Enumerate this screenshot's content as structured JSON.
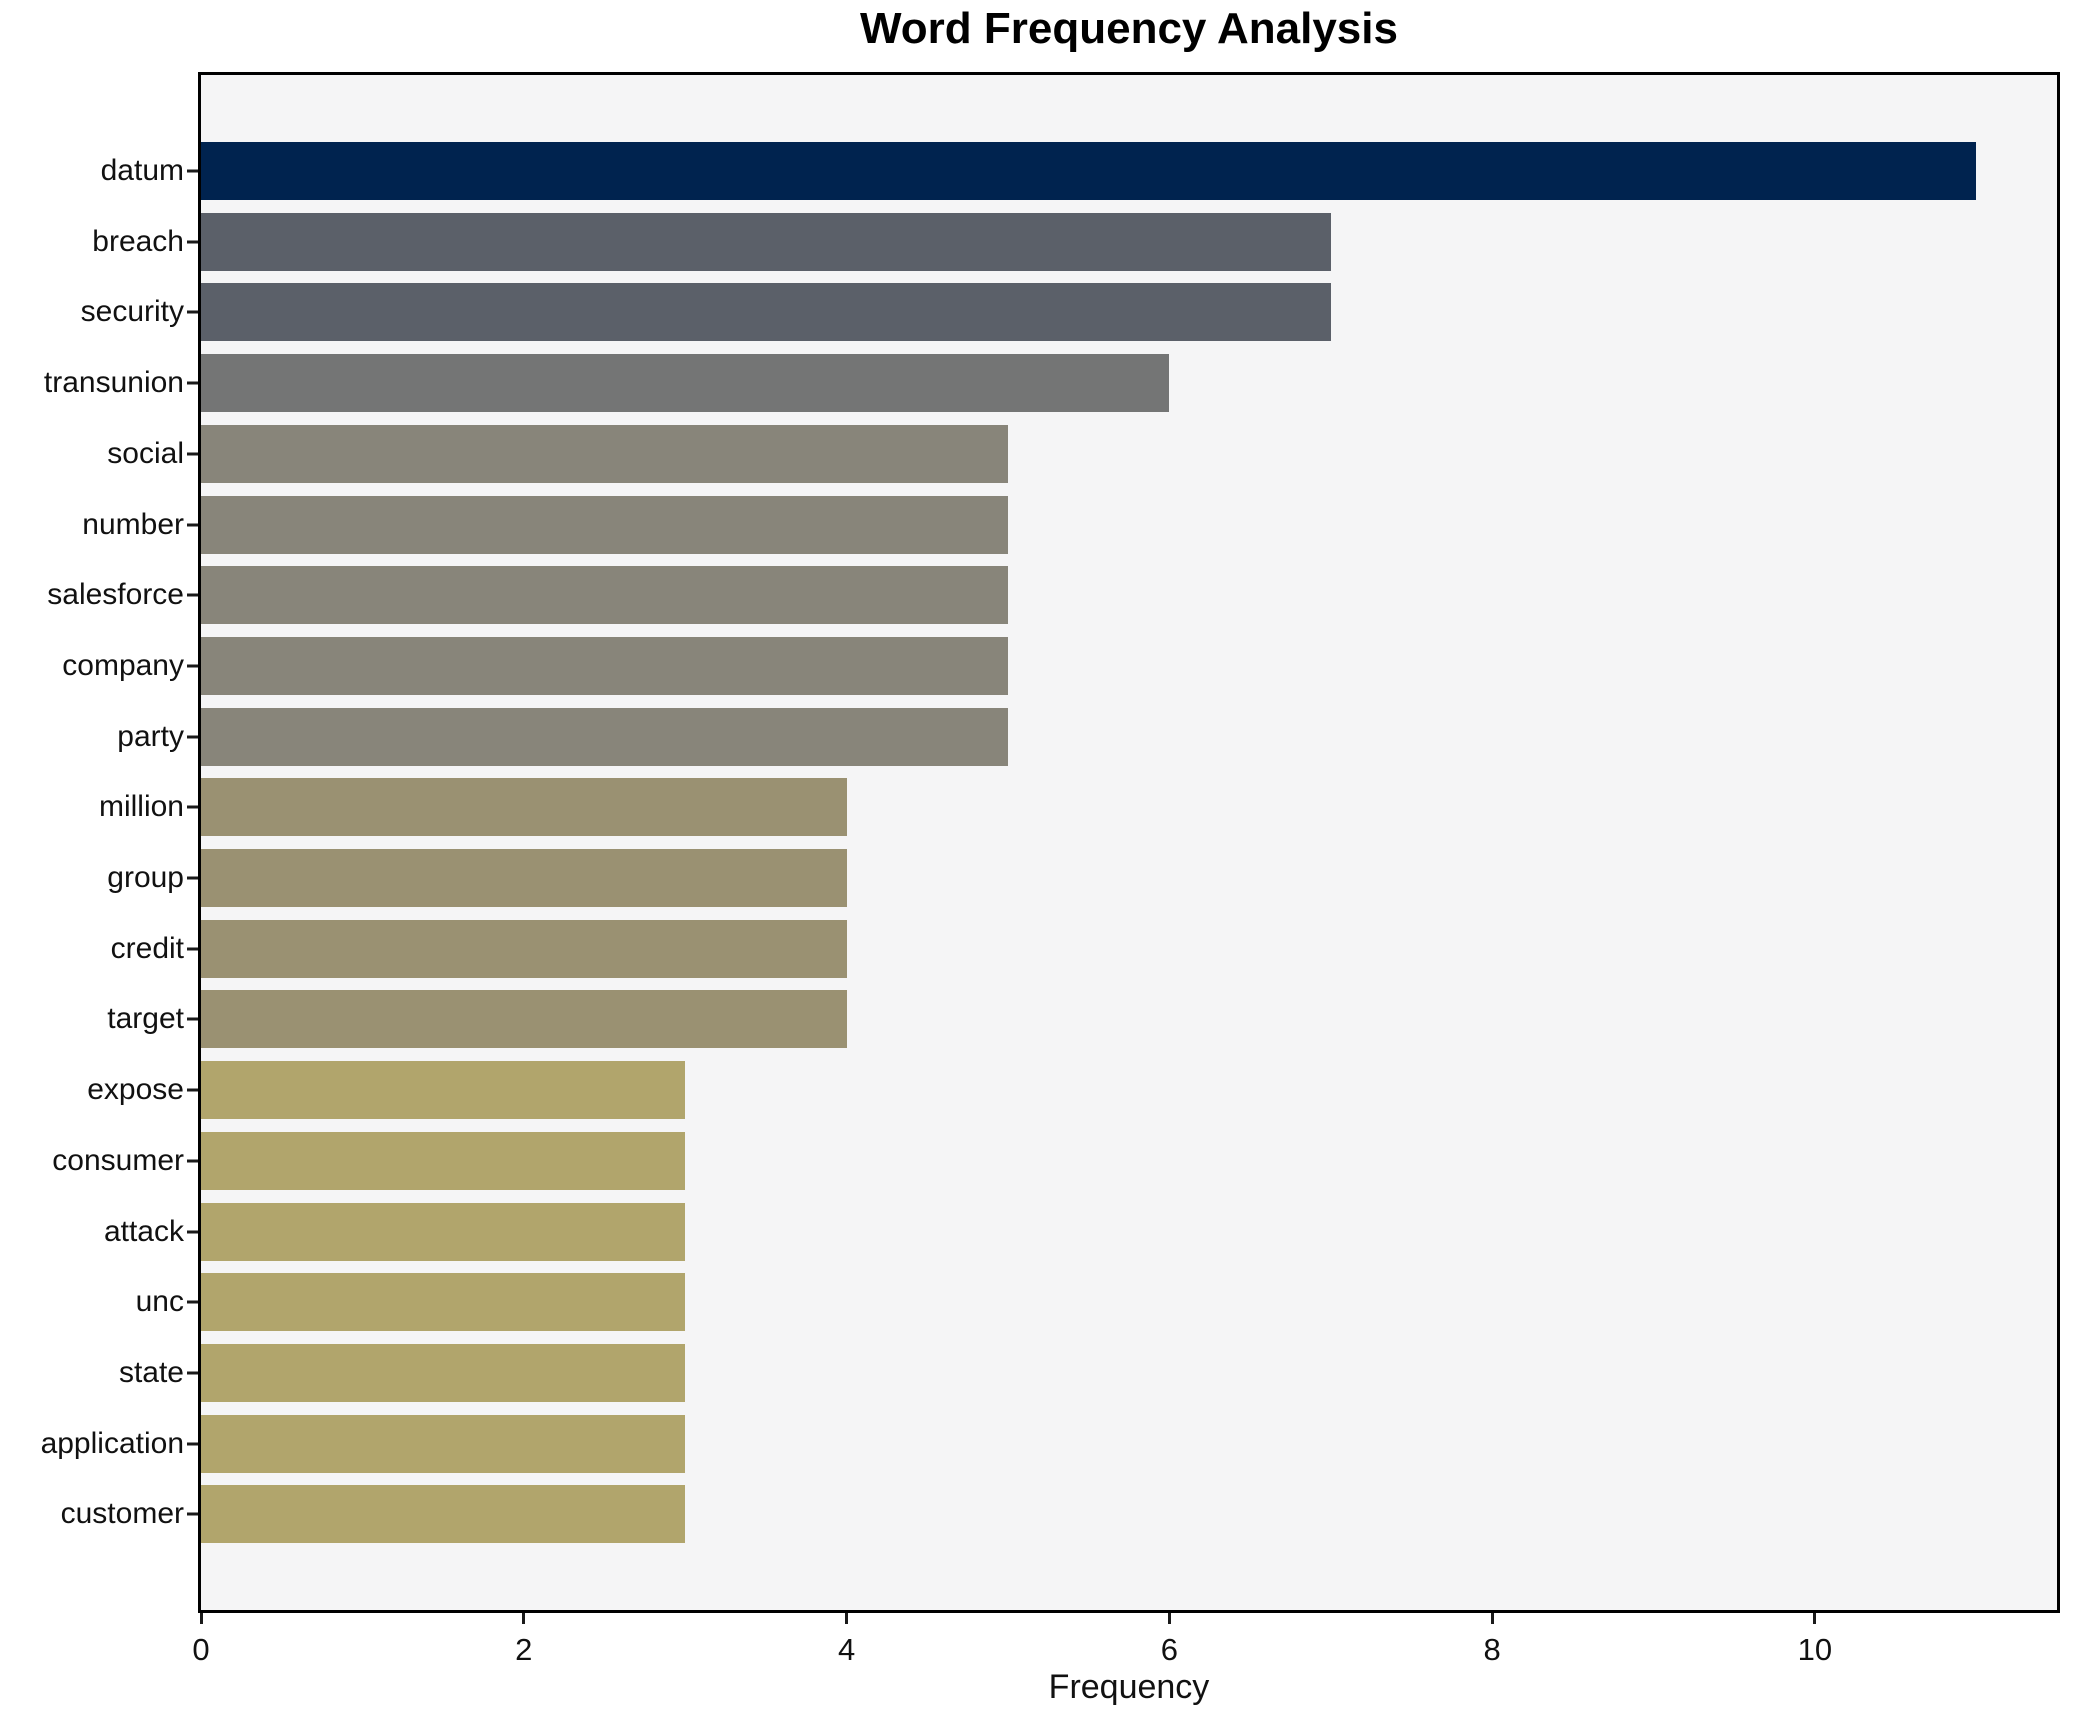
{
  "title": "Word Frequency Analysis",
  "chart_data": {
    "type": "bar",
    "orientation": "horizontal",
    "title": "Word Frequency Analysis",
    "xlabel": "Frequency",
    "ylabel": "",
    "xlim": [
      0,
      11.5
    ],
    "x_ticks": [
      0,
      2,
      4,
      6,
      8,
      10
    ],
    "grid": false,
    "legend": "none",
    "plot_background": "#f5f5f6",
    "figure_background": "#ffffff",
    "categories": [
      "datum",
      "breach",
      "security",
      "transunion",
      "social",
      "number",
      "salesforce",
      "company",
      "party",
      "million",
      "group",
      "credit",
      "target",
      "expose",
      "consumer",
      "attack",
      "unc",
      "state",
      "application",
      "customer"
    ],
    "values": [
      11,
      7,
      7,
      6,
      5,
      5,
      5,
      5,
      5,
      4,
      4,
      4,
      4,
      3,
      3,
      3,
      3,
      3,
      3,
      3
    ],
    "bar_colors": [
      "#00234f",
      "#5b6069",
      "#5b6069",
      "#747575",
      "#88857a",
      "#88857a",
      "#88857a",
      "#88857a",
      "#88857a",
      "#9a9172",
      "#9a9172",
      "#9a9172",
      "#9a9172",
      "#b1a56c",
      "#b1a56c",
      "#b1a56c",
      "#b1a56c",
      "#b1a56c",
      "#b1a56c",
      "#b1a56c"
    ]
  }
}
